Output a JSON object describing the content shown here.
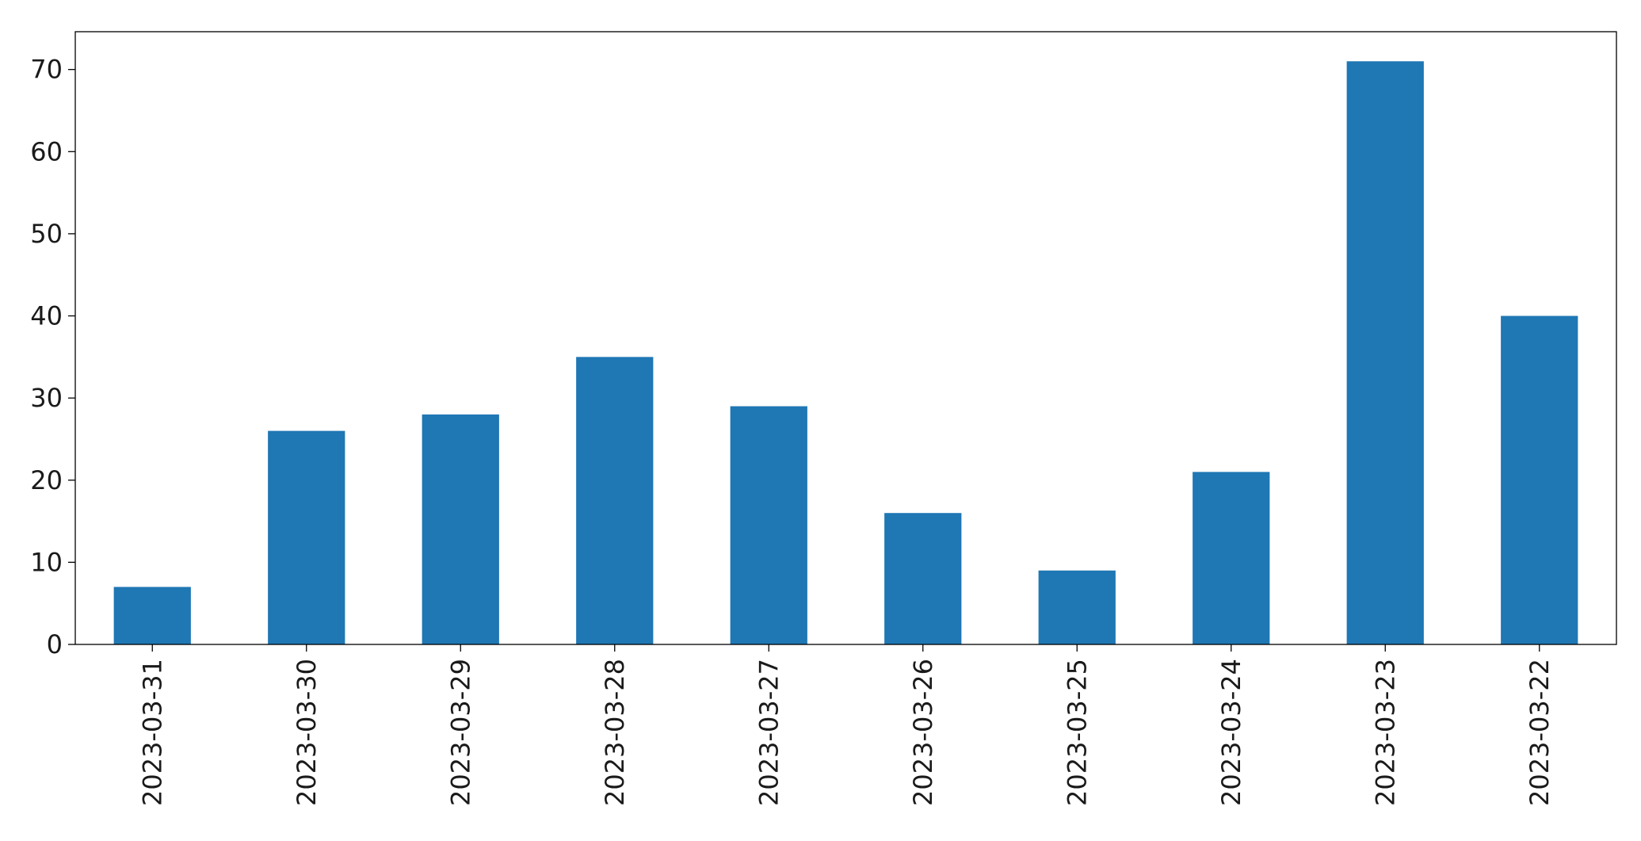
{
  "chart_data": {
    "type": "bar",
    "title": "",
    "xlabel": "",
    "ylabel": "",
    "categories": [
      "2023-03-31",
      "2023-03-30",
      "2023-03-29",
      "2023-03-28",
      "2023-03-27",
      "2023-03-26",
      "2023-03-25",
      "2023-03-24",
      "2023-03-23",
      "2023-03-22"
    ],
    "values": [
      7,
      26,
      28,
      35,
      29,
      16,
      9,
      21,
      71,
      40
    ],
    "ylim": [
      0,
      74.6
    ],
    "yticks": [
      0,
      10,
      20,
      30,
      40,
      50,
      60,
      70
    ],
    "bar_color": "#1f77b4",
    "grid": false,
    "legend": "none"
  }
}
